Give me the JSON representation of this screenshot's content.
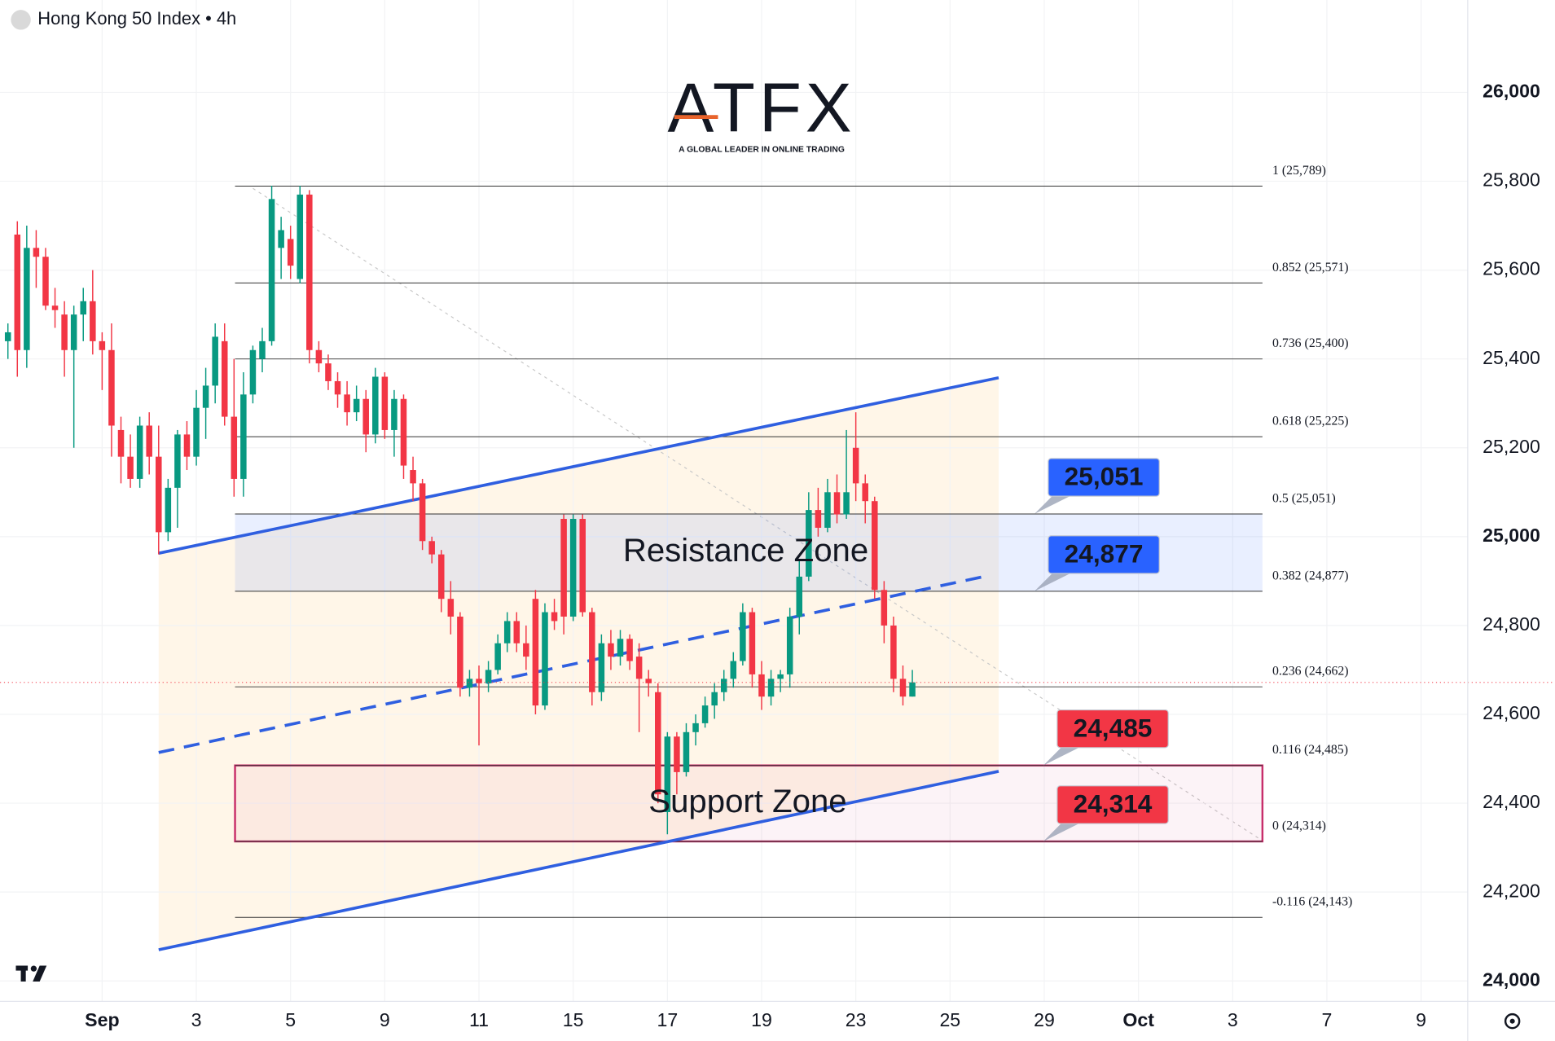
{
  "chart_data": {
    "type": "candlestick",
    "title": "Hong Kong 50 Index • 4h",
    "up_color": "#089981",
    "down_color": "#f23645",
    "grid": true,
    "xlim": [
      -0.84,
      154.95
    ],
    "ylim": [
      23954,
      26208
    ],
    "xticks": [
      {
        "value": 10,
        "label": "Sep"
      },
      {
        "value": 20,
        "label": "3"
      },
      {
        "value": 30,
        "label": "5"
      },
      {
        "value": 40,
        "label": "9"
      },
      {
        "value": 50,
        "label": "11"
      },
      {
        "value": 60,
        "label": "15"
      },
      {
        "value": 70,
        "label": "17"
      },
      {
        "value": 80,
        "label": "19"
      },
      {
        "value": 90,
        "label": "23"
      },
      {
        "value": 100,
        "label": "25"
      },
      {
        "value": 110,
        "label": "29"
      },
      {
        "value": 120,
        "label": "Oct"
      },
      {
        "value": 130,
        "label": "3"
      },
      {
        "value": 140,
        "label": "7"
      },
      {
        "value": 150,
        "label": "9"
      }
    ],
    "yticks": [
      {
        "value": 24000,
        "label": "24,000"
      },
      {
        "value": 24200,
        "label": "24,200"
      },
      {
        "value": 24400,
        "label": "24,400"
      },
      {
        "value": 24600,
        "label": "24,600"
      },
      {
        "value": 24800,
        "label": "24,800"
      },
      {
        "value": 25000,
        "label": "25,000"
      },
      {
        "value": 25200,
        "label": "25,200"
      },
      {
        "value": 25400,
        "label": "25,400"
      },
      {
        "value": 25600,
        "label": "25,600"
      },
      {
        "value": 25800,
        "label": "25,800"
      },
      {
        "value": 26000,
        "label": "26,000"
      }
    ],
    "candles": [
      [
        25440,
        25480,
        25400,
        25460
      ],
      [
        25680,
        25710,
        25360,
        25420
      ],
      [
        25420,
        25700,
        25380,
        25650
      ],
      [
        25650,
        25690,
        25560,
        25630
      ],
      [
        25630,
        25650,
        25510,
        25520
      ],
      [
        25520,
        25560,
        25470,
        25510
      ],
      [
        25500,
        25530,
        25360,
        25420
      ],
      [
        25420,
        25520,
        25200,
        25500
      ],
      [
        25500,
        25560,
        25440,
        25530
      ],
      [
        25530,
        25600,
        25410,
        25440
      ],
      [
        25440,
        25460,
        25330,
        25420
      ],
      [
        25420,
        25480,
        25180,
        25250
      ],
      [
        25240,
        25270,
        25120,
        25180
      ],
      [
        25180,
        25230,
        25110,
        25130
      ],
      [
        25130,
        25270,
        25110,
        25250
      ],
      [
        25250,
        25280,
        25140,
        25180
      ],
      [
        25180,
        25250,
        24960,
        25010
      ],
      [
        25010,
        25130,
        24990,
        25110
      ],
      [
        25110,
        25240,
        25020,
        25230
      ],
      [
        25230,
        25260,
        25150,
        25180
      ],
      [
        25180,
        25330,
        25160,
        25290
      ],
      [
        25290,
        25380,
        25220,
        25340
      ],
      [
        25340,
        25480,
        25300,
        25450
      ],
      [
        25440,
        25480,
        25250,
        25270
      ],
      [
        25270,
        25400,
        25090,
        25130
      ],
      [
        25130,
        25370,
        25090,
        25320
      ],
      [
        25320,
        25430,
        25300,
        25420
      ],
      [
        25400,
        25470,
        25370,
        25440
      ],
      [
        25440,
        25790,
        25430,
        25760
      ],
      [
        25650,
        25720,
        25580,
        25690
      ],
      [
        25670,
        25700,
        25580,
        25610
      ],
      [
        25580,
        25790,
        25570,
        25770
      ],
      [
        25770,
        25780,
        25390,
        25420
      ],
      [
        25420,
        25440,
        25370,
        25390
      ],
      [
        25390,
        25410,
        25330,
        25350
      ],
      [
        25350,
        25370,
        25290,
        25320
      ],
      [
        25320,
        25350,
        25250,
        25280
      ],
      [
        25280,
        25340,
        25260,
        25310
      ],
      [
        25310,
        25330,
        25190,
        25230
      ],
      [
        25230,
        25380,
        25210,
        25360
      ],
      [
        25360,
        25370,
        25220,
        25240
      ],
      [
        25240,
        25330,
        25180,
        25310
      ],
      [
        25310,
        25320,
        25130,
        25160
      ],
      [
        25150,
        25180,
        25080,
        25120
      ],
      [
        25120,
        25130,
        24970,
        24990
      ],
      [
        24990,
        25000,
        24940,
        24960
      ],
      [
        24960,
        24970,
        24830,
        24860
      ],
      [
        24860,
        24900,
        24780,
        24820
      ],
      [
        24820,
        24830,
        24640,
        24660
      ],
      [
        24660,
        24700,
        24640,
        24680
      ],
      [
        24680,
        24710,
        24530,
        24670
      ],
      [
        24670,
        24720,
        24650,
        24700
      ],
      [
        24700,
        24780,
        24690,
        24760
      ],
      [
        24760,
        24830,
        24740,
        24810
      ],
      [
        24810,
        24830,
        24740,
        24760
      ],
      [
        24760,
        24800,
        24700,
        24730
      ],
      [
        24860,
        24880,
        24600,
        24620
      ],
      [
        24620,
        24850,
        24610,
        24830
      ],
      [
        24830,
        24860,
        24790,
        24810
      ],
      [
        25040,
        25050,
        24780,
        24820
      ],
      [
        24820,
        25050,
        24810,
        25040
      ],
      [
        25040,
        25050,
        24820,
        24830
      ],
      [
        24830,
        24840,
        24620,
        24650
      ],
      [
        24650,
        24780,
        24630,
        24760
      ],
      [
        24760,
        24790,
        24700,
        24730
      ],
      [
        24730,
        24790,
        24710,
        24770
      ],
      [
        24770,
        24780,
        24700,
        24720
      ],
      [
        24730,
        24760,
        24560,
        24680
      ],
      [
        24680,
        24700,
        24640,
        24670
      ],
      [
        24650,
        24670,
        24400,
        24420
      ],
      [
        24380,
        24560,
        24330,
        24550
      ],
      [
        24550,
        24560,
        24420,
        24470
      ],
      [
        24470,
        24580,
        24460,
        24560
      ],
      [
        24560,
        24600,
        24530,
        24580
      ],
      [
        24580,
        24640,
        24570,
        24620
      ],
      [
        24620,
        24670,
        24590,
        24650
      ],
      [
        24650,
        24700,
        24630,
        24680
      ],
      [
        24680,
        24740,
        24660,
        24720
      ],
      [
        24720,
        24850,
        24710,
        24830
      ],
      [
        24830,
        24840,
        24660,
        24690
      ],
      [
        24690,
        24720,
        24610,
        24640
      ],
      [
        24640,
        24700,
        24620,
        24680
      ],
      [
        24680,
        24700,
        24650,
        24690
      ],
      [
        24690,
        24840,
        24660,
        24820
      ],
      [
        24820,
        24950,
        24780,
        24910
      ],
      [
        24910,
        25100,
        24900,
        25060
      ],
      [
        25060,
        25110,
        25000,
        25020
      ],
      [
        25020,
        25130,
        25010,
        25100
      ],
      [
        25100,
        25140,
        25030,
        25050
      ],
      [
        25050,
        25240,
        25040,
        25100
      ],
      [
        25200,
        25280,
        25080,
        25120
      ],
      [
        25120,
        25140,
        25030,
        25080
      ],
      [
        25080,
        25090,
        24860,
        24880
      ],
      [
        24880,
        24900,
        24760,
        24800
      ],
      [
        24800,
        24820,
        24650,
        24680
      ],
      [
        24680,
        24710,
        24620,
        24640
      ],
      [
        24640,
        24700,
        24640,
        24672
      ]
    ],
    "fib_levels": [
      {
        "value": 25789,
        "label": "1 (25,789)"
      },
      {
        "value": 25571,
        "label": "0.852 (25,571)"
      },
      {
        "value": 25400,
        "label": "0.736 (25,400)"
      },
      {
        "value": 25225,
        "label": "0.618 (25,225)"
      },
      {
        "value": 25051,
        "label": "0.5 (25,051)"
      },
      {
        "value": 24877,
        "label": "0.382 (24,877)"
      },
      {
        "value": 24662,
        "label": "0.236 (24,662)"
      },
      {
        "value": 24485,
        "label": "0.116 (24,485)"
      },
      {
        "value": 24314,
        "label": "0 (24,314)"
      },
      {
        "value": 24143,
        "label": "-0.116 (24,143)"
      }
    ],
    "zones": [
      {
        "name": "Resistance Zone",
        "low": 24877,
        "high": 25051,
        "color": "#2962ff"
      },
      {
        "name": "Support Zone",
        "low": 24314,
        "high": 24485,
        "color": "#c2185b"
      }
    ],
    "price_labels": [
      {
        "value": 25051,
        "label": "25,051",
        "color": "#2962ff"
      },
      {
        "value": 24877,
        "label": "24,877",
        "color": "#2962ff"
      },
      {
        "value": 24485,
        "label": "24,485",
        "color": "#f23645"
      },
      {
        "value": 24314,
        "label": "24,314",
        "color": "#f23645"
      }
    ]
  },
  "logo": {
    "text": "ATFX",
    "tagline": "A GLOBAL LEADER IN ONLINE TRADING"
  }
}
